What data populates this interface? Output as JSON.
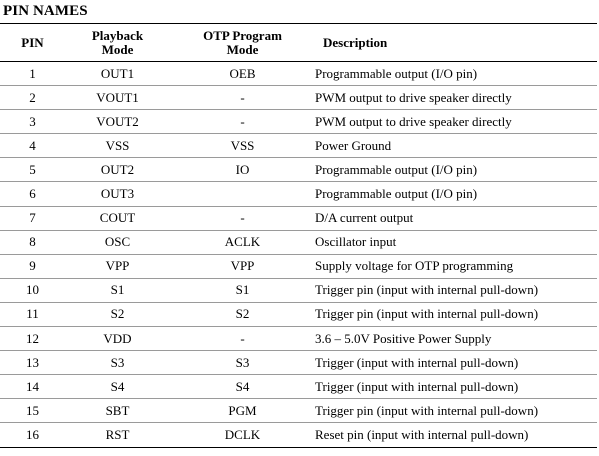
{
  "section_title": "PIN NAMES",
  "columns": {
    "pin": "PIN",
    "playback_line1": "Playback",
    "playback_line2": "Mode",
    "otp_line1": "OTP Program",
    "otp_line2": "Mode",
    "description": "Description"
  },
  "rows": [
    {
      "pin": "1",
      "playback": "OUT1",
      "otp": "OEB",
      "description": "Programmable output (I/O pin)"
    },
    {
      "pin": "2",
      "playback": "VOUT1",
      "otp": "-",
      "description": "PWM output to drive speaker directly"
    },
    {
      "pin": "3",
      "playback": "VOUT2",
      "otp": "-",
      "description": "PWM output to drive speaker directly"
    },
    {
      "pin": "4",
      "playback": "VSS",
      "otp": "VSS",
      "description": "Power Ground"
    },
    {
      "pin": "5",
      "playback": "OUT2",
      "otp": "IO",
      "description": "Programmable output (I/O pin)"
    },
    {
      "pin": "6",
      "playback": "OUT3",
      "otp": "",
      "description": "Programmable output (I/O pin)"
    },
    {
      "pin": "7",
      "playback": "COUT",
      "otp": "-",
      "description": "D/A current output"
    },
    {
      "pin": "8",
      "playback": "OSC",
      "otp": "ACLK",
      "description": "Oscillator input"
    },
    {
      "pin": "9",
      "playback": "VPP",
      "otp": "VPP",
      "description": "Supply voltage for OTP programming"
    },
    {
      "pin": "10",
      "playback": "S1",
      "otp": "S1",
      "description": "Trigger pin (input with internal pull-down)"
    },
    {
      "pin": "11",
      "playback": "S2",
      "otp": "S2",
      "description": "Trigger pin (input with internal pull-down)"
    },
    {
      "pin": "12",
      "playback": "VDD",
      "otp": "-",
      "description": "3.6 – 5.0V Positive Power Supply"
    },
    {
      "pin": "13",
      "playback": "S3",
      "otp": "S3",
      "description": "Trigger (input with internal pull-down)"
    },
    {
      "pin": "14",
      "playback": "S4",
      "otp": "S4",
      "description": "Trigger (input with internal pull-down)"
    },
    {
      "pin": "15",
      "playback": "SBT",
      "otp": "PGM",
      "description": "Trigger pin (input with internal pull-down)"
    },
    {
      "pin": "16",
      "playback": "RST",
      "otp": "DCLK",
      "description": "Reset pin (input with internal pull-down)"
    }
  ]
}
